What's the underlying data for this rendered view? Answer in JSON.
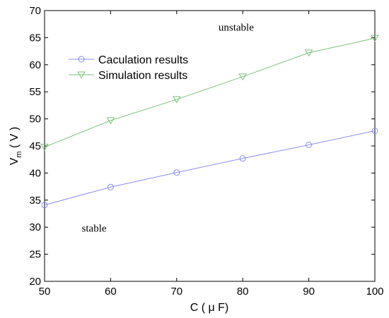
{
  "chart_data": {
    "type": "line",
    "xlabel": "C ( μ F)",
    "ylabel": "V_m ( V )",
    "ylabel_main": "V",
    "ylabel_sub": "m",
    "ylabel_rest": " ( V )",
    "xlim": [
      50,
      100
    ],
    "ylim": [
      20,
      70
    ],
    "xticks": [
      50,
      60,
      70,
      80,
      90,
      100
    ],
    "yticks": [
      20,
      25,
      30,
      35,
      40,
      45,
      50,
      55,
      60,
      65,
      70
    ],
    "grid": false,
    "legend_position": "upper-left",
    "series": [
      {
        "name": "Caculation results",
        "marker": "circle",
        "color": "#8c8cf0",
        "x": [
          50,
          60,
          70,
          80,
          90,
          100
        ],
        "y": [
          34.1,
          37.4,
          40.1,
          42.7,
          45.2,
          47.8
        ]
      },
      {
        "name": "Simulation results",
        "marker": "triangle-down",
        "color": "#7cc27c",
        "x": [
          50,
          60,
          70,
          80,
          90,
          100
        ],
        "y": [
          44.8,
          49.7,
          53.6,
          57.8,
          62.2,
          64.9
        ]
      }
    ],
    "annotations": [
      {
        "text": "unstable",
        "x": 79,
        "y": 66.3
      },
      {
        "text": "stable",
        "x": 57.5,
        "y": 29.2
      }
    ]
  }
}
